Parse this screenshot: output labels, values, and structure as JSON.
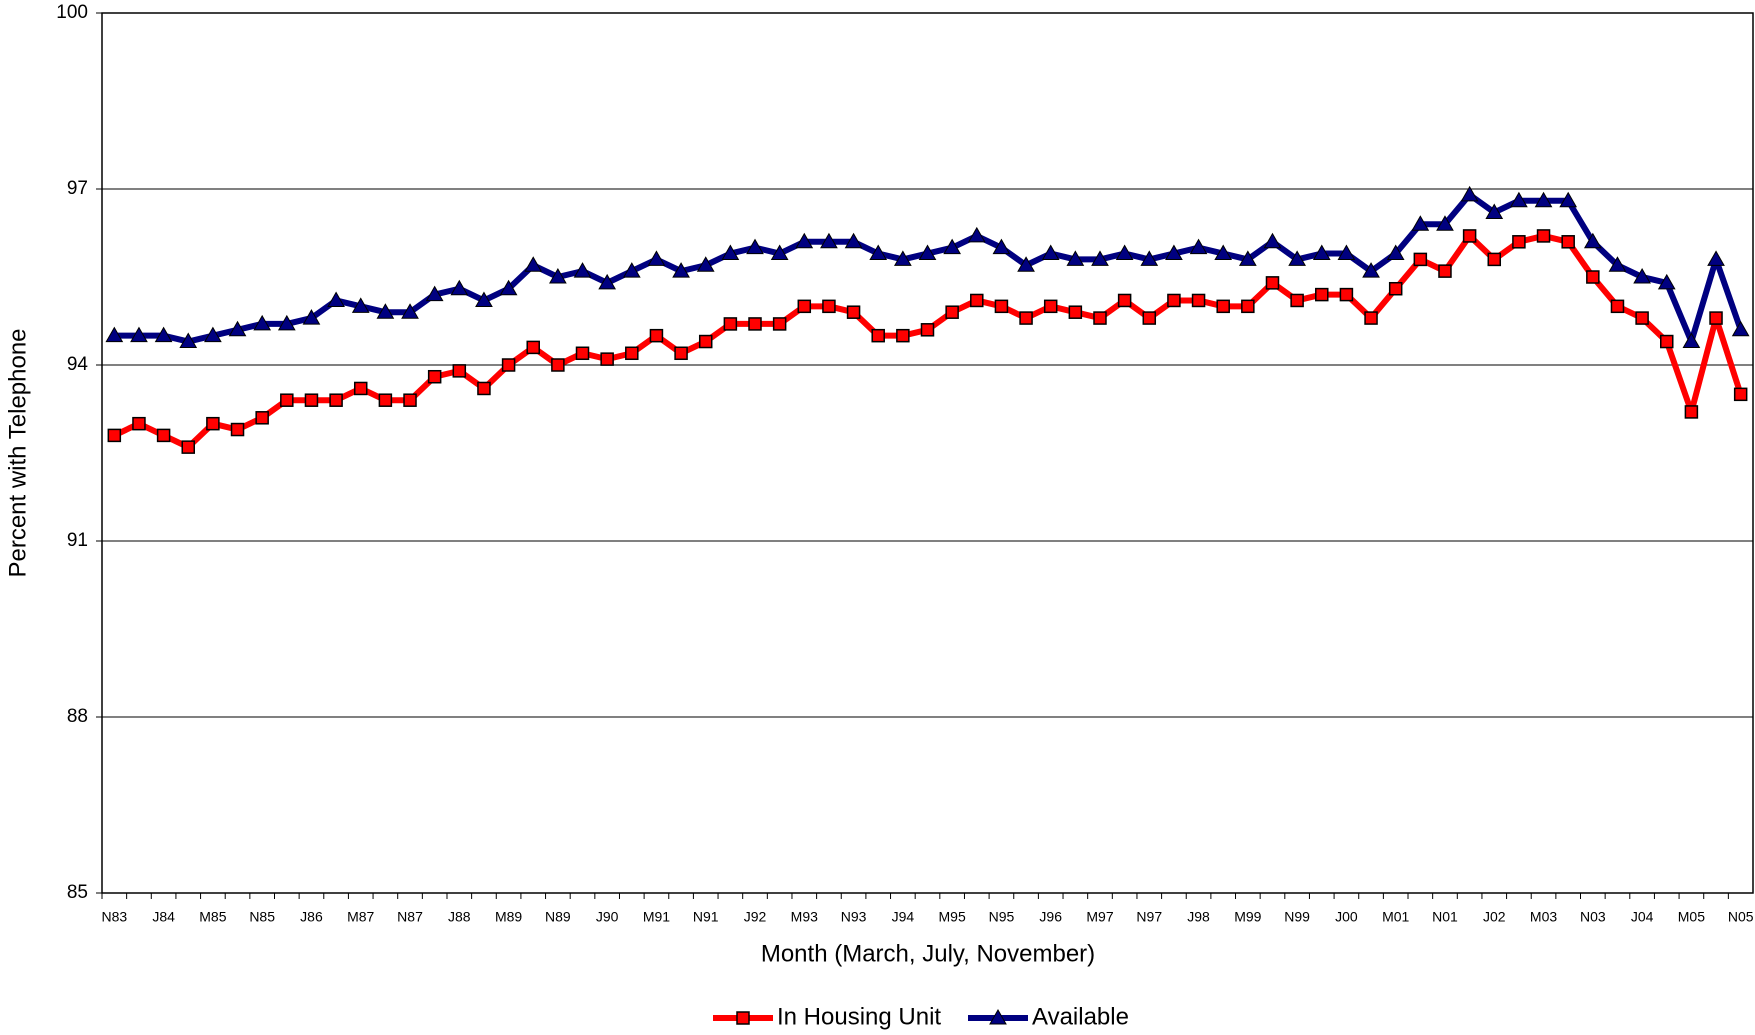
{
  "chart_data": {
    "type": "line",
    "x_label": "Month (March, July, November)",
    "y_label": "Percent with Telephone",
    "categories": [
      "N83",
      null,
      "J84",
      null,
      "M85",
      null,
      "N85",
      null,
      "J86",
      null,
      "M87",
      null,
      "N87",
      null,
      "J88",
      null,
      "M89",
      null,
      "N89",
      null,
      "J90",
      null,
      "M91",
      null,
      "N91",
      null,
      "J92",
      null,
      "M93",
      null,
      "N93",
      null,
      "J94",
      null,
      "M95",
      null,
      "N95",
      null,
      "J96",
      null,
      "M97",
      null,
      "N97",
      null,
      "J98",
      null,
      "M99",
      null,
      "N99",
      null,
      "J00",
      null,
      "M01",
      null,
      "N01",
      null,
      "J02",
      null,
      "M03",
      null,
      "N03",
      null,
      "J04",
      null,
      "M05",
      null,
      "N05"
    ],
    "series": [
      {
        "name": "In Housing Unit",
        "color": "#ff0000",
        "marker": "square",
        "values": [
          92.8,
          93.0,
          92.8,
          92.6,
          93.0,
          92.9,
          93.1,
          93.4,
          93.4,
          93.4,
          93.6,
          93.4,
          93.4,
          93.8,
          93.9,
          93.6,
          94.0,
          94.3,
          94.0,
          94.2,
          94.1,
          94.2,
          94.5,
          94.2,
          94.4,
          94.7,
          94.7,
          94.7,
          95.0,
          95.0,
          94.9,
          94.5,
          94.5,
          94.6,
          94.9,
          95.1,
          95.0,
          94.8,
          95.0,
          94.9,
          94.8,
          95.1,
          94.8,
          95.1,
          95.1,
          95.0,
          95.0,
          95.4,
          95.1,
          95.2,
          95.2,
          94.8,
          95.3,
          95.8,
          95.6,
          96.2,
          95.8,
          96.1,
          96.2,
          96.1,
          95.5,
          95.0,
          94.8,
          94.4,
          93.2,
          94.8,
          93.5
        ]
      },
      {
        "name": "Available",
        "color": "#000080",
        "marker": "triangle",
        "values": [
          94.5,
          94.5,
          94.5,
          94.4,
          94.5,
          94.6,
          94.7,
          94.7,
          94.8,
          95.1,
          95.0,
          94.9,
          94.9,
          95.2,
          95.3,
          95.1,
          95.3,
          95.7,
          95.5,
          95.6,
          95.4,
          95.6,
          95.8,
          95.6,
          95.7,
          95.9,
          96.0,
          95.9,
          96.1,
          96.1,
          96.1,
          95.9,
          95.8,
          95.9,
          96.0,
          96.2,
          96.0,
          95.7,
          95.9,
          95.8,
          95.8,
          95.9,
          95.8,
          95.9,
          96.0,
          95.9,
          95.8,
          96.1,
          95.8,
          95.9,
          95.9,
          95.6,
          95.9,
          96.4,
          96.4,
          96.9,
          96.6,
          96.8,
          96.8,
          96.8,
          96.1,
          95.7,
          95.5,
          95.4,
          94.4,
          95.8,
          94.6
        ]
      }
    ],
    "ylim": [
      85,
      100
    ],
    "yticks": [
      85,
      88,
      91,
      94,
      97,
      100
    ],
    "grid": true,
    "legend": "bottom"
  }
}
